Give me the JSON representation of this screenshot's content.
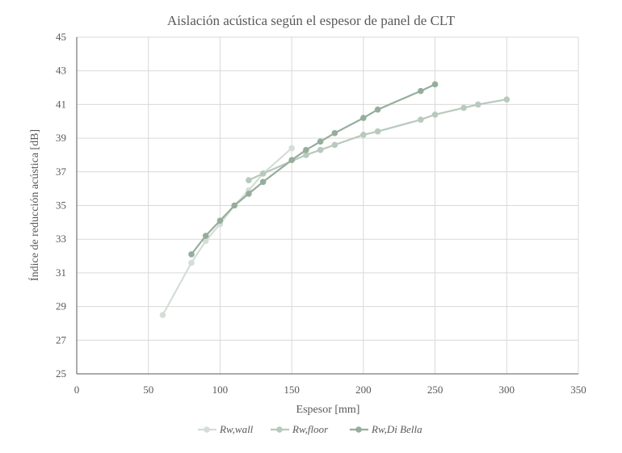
{
  "chart_data": {
    "type": "line",
    "title": "Aislación acústica según el espesor de panel de CLT",
    "xlabel": "Espesor [mm]",
    "ylabel": "Índice de reducción acústica [dB]",
    "xlim": [
      0,
      350
    ],
    "ylim": [
      25,
      45
    ],
    "x_ticks": [
      "0",
      "50",
      "100",
      "150",
      "200",
      "250",
      "300",
      "350"
    ],
    "y_ticks": [
      "25",
      "27",
      "29",
      "31",
      "33",
      "35",
      "37",
      "39",
      "41",
      "43",
      "45"
    ],
    "grid": true,
    "legend_position": "bottom",
    "series": [
      {
        "name": "Rw,wall",
        "color": "#d4ddd6",
        "x": [
          60,
          80,
          90,
          100,
          110,
          120,
          130,
          150
        ],
        "y": [
          28.5,
          31.6,
          32.9,
          33.9,
          35.0,
          35.9,
          36.9,
          38.4
        ]
      },
      {
        "name": "Rw,floor",
        "color": "#b8c9bd",
        "x": [
          120,
          130,
          160,
          170,
          180,
          200,
          210,
          240,
          250,
          270,
          280,
          300
        ],
        "y": [
          36.5,
          36.9,
          38.0,
          38.3,
          38.6,
          39.2,
          39.4,
          40.1,
          40.4,
          40.8,
          41.0,
          41.3
        ]
      },
      {
        "name": "Rw,Di Bella",
        "color": "#96ad9c",
        "x": [
          80,
          90,
          100,
          110,
          120,
          130,
          150,
          160,
          170,
          180,
          200,
          210,
          240,
          250
        ],
        "y": [
          32.1,
          33.2,
          34.1,
          35.0,
          35.7,
          36.4,
          37.7,
          38.3,
          38.8,
          39.3,
          40.2,
          40.7,
          41.8,
          42.2
        ]
      }
    ]
  }
}
